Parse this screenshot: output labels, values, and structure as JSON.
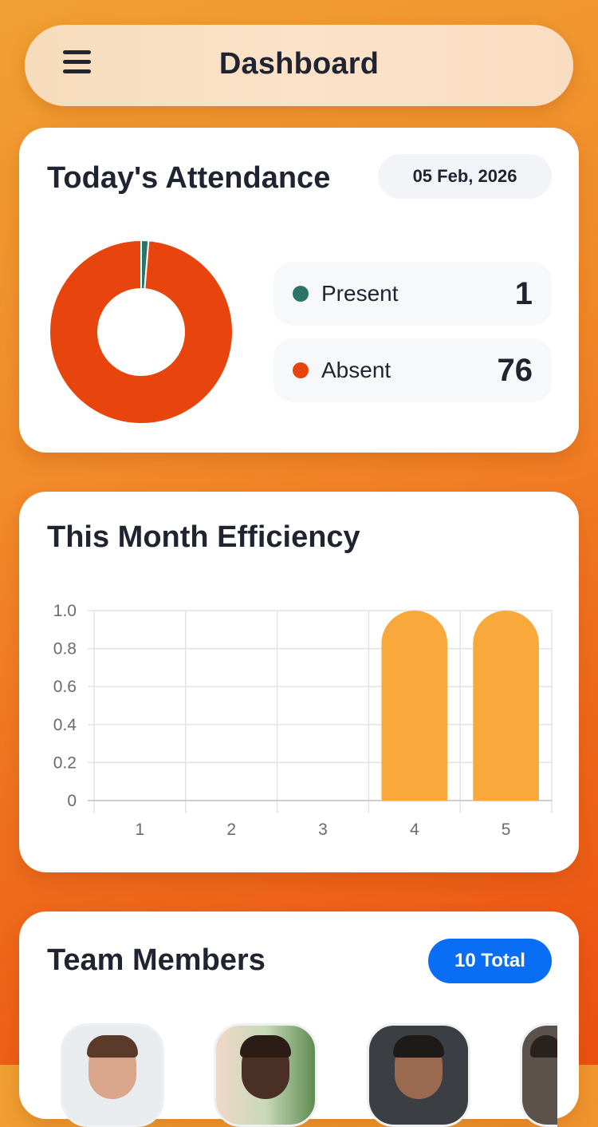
{
  "header": {
    "title": "Dashboard",
    "menu_icon": "hamburger-menu-icon"
  },
  "attendance": {
    "title": "Today's Attendance",
    "date": "05 Feb, 2026",
    "present": {
      "label": "Present",
      "value": 1,
      "color": "#2a7566"
    },
    "absent": {
      "label": "Absent",
      "value": 76,
      "color": "#e8450e"
    }
  },
  "efficiency": {
    "title": "This Month Efficiency",
    "chart_data": {
      "type": "bar",
      "categories": [
        "1",
        "2",
        "3",
        "4",
        "5"
      ],
      "values": [
        0,
        0,
        0,
        1.0,
        1.0
      ],
      "ylim": [
        0,
        1.0
      ],
      "yticks": [
        "0",
        "0.2",
        "0.4",
        "0.6",
        "0.8",
        "1.0"
      ],
      "grid": true,
      "bar_color": "#f9a83b"
    }
  },
  "team": {
    "title": "Team Members",
    "total_label": "10 Total"
  },
  "colors": {
    "accent": "#0a6ef5",
    "text": "#1f2430"
  }
}
